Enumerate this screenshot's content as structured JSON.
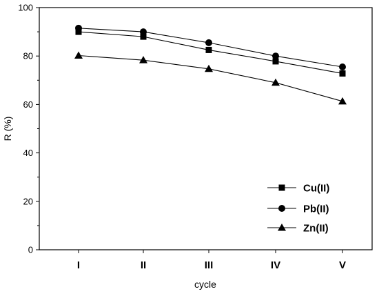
{
  "chart_data": {
    "type": "line",
    "categories": [
      "I",
      "II",
      "III",
      "IV",
      "V"
    ],
    "xlabel": "cycle",
    "ylabel": "R (%)",
    "ylim": [
      0,
      100
    ],
    "yticks": [
      0,
      20,
      40,
      60,
      80,
      100
    ],
    "grid": false,
    "legend_position": "bottom-right",
    "series": [
      {
        "name": "Cu(II)",
        "marker": "square",
        "values": [
          90.0,
          88.0,
          82.5,
          77.8,
          72.8
        ]
      },
      {
        "name": "Pb(II)",
        "marker": "circle",
        "values": [
          91.5,
          90.0,
          85.5,
          80.0,
          75.5
        ]
      },
      {
        "name": "Zn(II)",
        "marker": "triangle",
        "values": [
          80.2,
          78.3,
          74.7,
          69.0,
          61.3
        ]
      }
    ],
    "colors": {
      "line": "#000000",
      "marker": "#000000"
    }
  }
}
